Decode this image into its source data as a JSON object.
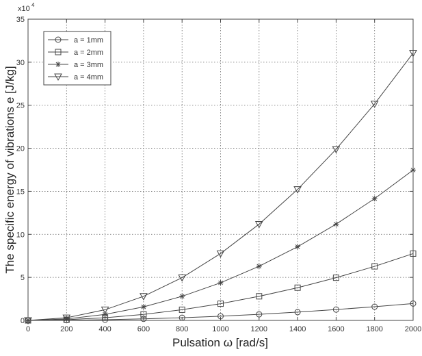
{
  "chart_data": {
    "type": "line",
    "title": "",
    "xlabel": "Pulsation ω [rad/s]",
    "ylabel": "The specific energy of vibrations e [J/kg]",
    "y_multiplier_label": "x10",
    "y_multiplier_exponent": "4",
    "xlim": [
      0,
      2000
    ],
    "ylim": [
      0,
      35
    ],
    "x_ticks": [
      0,
      200,
      400,
      600,
      800,
      1000,
      1200,
      1400,
      1600,
      1800,
      2000
    ],
    "y_ticks": [
      0,
      5,
      10,
      15,
      20,
      25,
      30,
      35
    ],
    "x_tick_labels": [
      "0",
      "200",
      "400",
      "600",
      "800",
      "1000",
      "1200",
      "1400",
      "1600",
      "1800",
      "2000"
    ],
    "y_tick_labels": [
      "0",
      "5",
      "10",
      "15",
      "20",
      "25",
      "30",
      "35"
    ],
    "grid": true,
    "legend_position": "top-left",
    "x": [
      0,
      200,
      400,
      600,
      800,
      1000,
      1200,
      1400,
      1600,
      1800,
      2000
    ],
    "series": [
      {
        "name": "a = 1mm",
        "marker": "circle",
        "values": [
          0,
          0.02,
          0.08,
          0.18,
          0.31,
          0.49,
          0.71,
          0.96,
          1.26,
          1.59,
          1.96
        ]
      },
      {
        "name": "a = 2mm",
        "marker": "square",
        "values": [
          0,
          0.08,
          0.31,
          0.7,
          1.24,
          1.94,
          2.8,
          3.8,
          4.96,
          6.28,
          7.76
        ]
      },
      {
        "name": "a = 3mm",
        "marker": "star",
        "values": [
          0,
          0.17,
          0.7,
          1.57,
          2.8,
          4.37,
          6.29,
          8.56,
          11.18,
          14.15,
          17.47
        ]
      },
      {
        "name": "a = 4mm",
        "marker": "triangle-down",
        "values": [
          0,
          0.31,
          1.24,
          2.8,
          4.97,
          7.77,
          11.18,
          15.22,
          19.88,
          25.16,
          31.06
        ]
      }
    ]
  }
}
